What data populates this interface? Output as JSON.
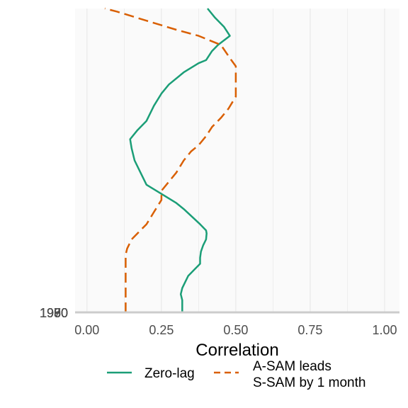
{
  "chart_data": {
    "type": "line",
    "xlabel": "Correlation",
    "ylabel": "",
    "xlim": [
      -0.04,
      1.05
    ],
    "x_ticks": [
      0.0,
      0.25,
      0.5,
      0.75,
      1.0
    ],
    "x_tick_labels": [
      "0.00",
      "0.25",
      "0.50",
      "0.75",
      "1.00"
    ],
    "y_tick_labels_overlapping": [
      "1950",
      "1960",
      "1970",
      "1980",
      "1990"
    ],
    "ylim": [
      0,
      100
    ],
    "grid": true,
    "legend_position": "bottom",
    "colors": {
      "zero_lag": "#1b9e77",
      "lead": "#d95f02",
      "panel_bg": "#fafafa",
      "grid": "#e6e6e6",
      "baseline": "#cccccc"
    },
    "series": [
      {
        "name": "Zero-lag",
        "style": "solid",
        "points": [
          [
            0.32,
            0
          ],
          [
            0.32,
            4
          ],
          [
            0.315,
            6
          ],
          [
            0.32,
            8
          ],
          [
            0.33,
            10
          ],
          [
            0.34,
            12
          ],
          [
            0.36,
            14
          ],
          [
            0.38,
            16
          ],
          [
            0.38,
            18
          ],
          [
            0.383,
            20
          ],
          [
            0.39,
            22
          ],
          [
            0.4,
            24
          ],
          [
            0.402,
            26
          ],
          [
            0.4,
            27
          ],
          [
            0.38,
            29
          ],
          [
            0.325,
            34
          ],
          [
            0.3,
            36
          ],
          [
            0.25,
            39
          ],
          [
            0.2,
            42
          ],
          [
            0.18,
            46
          ],
          [
            0.16,
            50
          ],
          [
            0.15,
            54
          ],
          [
            0.145,
            57
          ],
          [
            0.17,
            60
          ],
          [
            0.2,
            63
          ],
          [
            0.225,
            68
          ],
          [
            0.25,
            72
          ],
          [
            0.275,
            75
          ],
          [
            0.325,
            79
          ],
          [
            0.375,
            82
          ],
          [
            0.4,
            83
          ],
          [
            0.42,
            86
          ],
          [
            0.44,
            88
          ],
          [
            0.48,
            91
          ],
          [
            0.46,
            94
          ],
          [
            0.43,
            97
          ],
          [
            0.405,
            100
          ]
        ]
      },
      {
        "name": "A-SAM leads",
        "name_line2": "S-SAM by 1 month",
        "style": "dashed",
        "points": [
          [
            0.13,
            0
          ],
          [
            0.13,
            5
          ],
          [
            0.13,
            10
          ],
          [
            0.13,
            16
          ],
          [
            0.13,
            19
          ],
          [
            0.135,
            21
          ],
          [
            0.15,
            24
          ],
          [
            0.2,
            29
          ],
          [
            0.225,
            33
          ],
          [
            0.25,
            37
          ],
          [
            0.25,
            40
          ],
          [
            0.275,
            43
          ],
          [
            0.3,
            46
          ],
          [
            0.325,
            50
          ],
          [
            0.35,
            53
          ],
          [
            0.375,
            55
          ],
          [
            0.4,
            58
          ],
          [
            0.42,
            61
          ],
          [
            0.45,
            64
          ],
          [
            0.475,
            67
          ],
          [
            0.5,
            71
          ],
          [
            0.5,
            76
          ],
          [
            0.5,
            81
          ],
          [
            0.485,
            83
          ],
          [
            0.45,
            88
          ],
          [
            0.425,
            89
          ],
          [
            0.375,
            91
          ],
          [
            0.3,
            93
          ],
          [
            0.2,
            96
          ],
          [
            0.1,
            99
          ],
          [
            0.06,
            100
          ]
        ]
      }
    ]
  }
}
